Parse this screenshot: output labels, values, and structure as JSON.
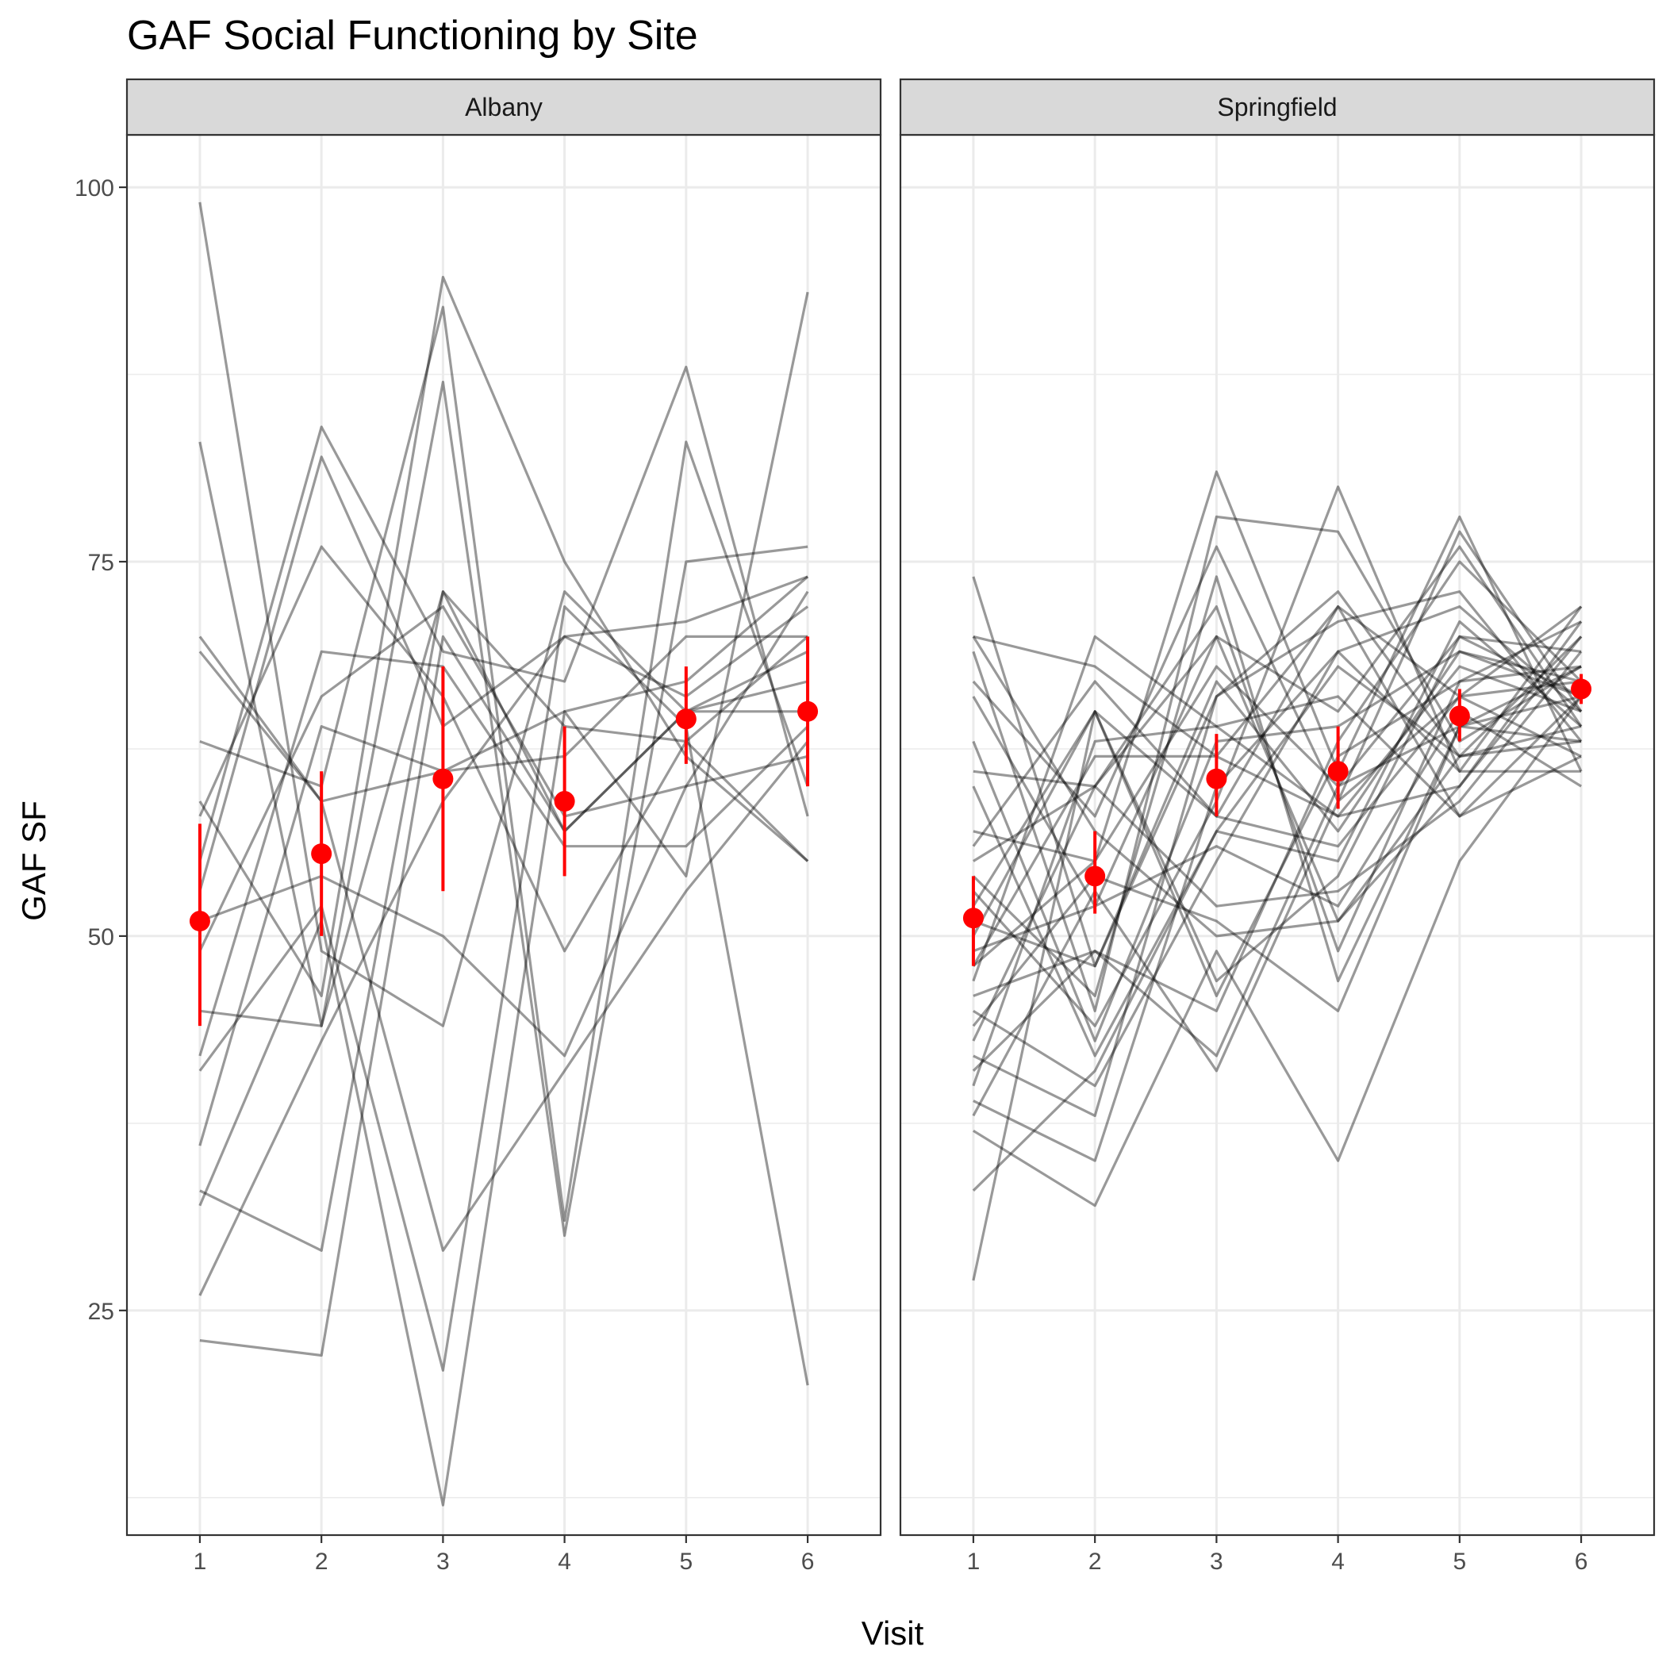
{
  "chart_data": {
    "type": "line",
    "title": "GAF Social Functioning by Site",
    "xlabel": "Visit",
    "ylabel": "GAF SF",
    "x": [
      1,
      2,
      3,
      4,
      5,
      6
    ],
    "x_ticks": [
      "1",
      "2",
      "3",
      "4",
      "5",
      "6"
    ],
    "y_ticks": [
      "25",
      "50",
      "75",
      "100"
    ],
    "y_tick_values": [
      25,
      50,
      75,
      100
    ],
    "ylim": [
      10,
      103.5
    ],
    "xlim": [
      0.4,
      6.6
    ],
    "grid": true,
    "colors": {
      "lines": "#000000",
      "summary": "#ff0000",
      "strip": "#d9d9d9",
      "grid": "#ebebeb",
      "border": "#333333"
    },
    "panels": [
      {
        "name": "Albany",
        "mean": [
          51,
          55.5,
          60.5,
          59,
          64.5,
          65
        ],
        "ci_low": [
          44,
          50,
          53,
          54,
          61.5,
          60
        ],
        "ci_high": [
          57.5,
          61,
          68,
          64,
          68,
          70
        ],
        "series": [
          [
            99,
            49,
            44,
            73,
            65,
            69
          ],
          [
            83,
            44,
            73,
            64,
            63,
            55
          ],
          [
            70,
            59,
            61,
            65,
            67,
            74
          ],
          [
            69,
            59,
            29,
            41,
            53,
            63
          ],
          [
            63,
            60,
            92,
            31,
            83,
            60
          ],
          [
            59,
            46,
            94,
            75,
            62,
            55
          ],
          [
            58,
            76,
            66,
            49,
            63,
            70
          ],
          [
            55,
            84,
            69,
            67,
            88,
            58
          ],
          [
            53,
            82,
            64,
            70,
            71,
            74
          ],
          [
            51,
            54,
            50,
            42,
            60,
            73
          ],
          [
            49,
            66,
            72,
            58,
            60,
            62
          ],
          [
            45,
            44,
            87,
            30,
            75,
            76
          ],
          [
            42,
            69,
            68,
            56,
            56,
            64
          ],
          [
            41,
            52,
            21,
            72,
            64,
            20
          ],
          [
            36,
            64,
            61,
            62,
            70,
            70
          ],
          [
            33,
            29,
            73,
            57,
            65,
            67
          ],
          [
            32,
            51,
            12,
            65,
            54,
            93
          ],
          [
            26,
            43,
            59,
            70,
            66,
            72
          ],
          [
            23,
            22,
            70,
            57,
            65,
            65
          ]
        ]
      },
      {
        "name": "Springfield",
        "mean": [
          51.2,
          54,
          60.5,
          61,
          64.7,
          66.5
        ],
        "ci_low": [
          48,
          51.5,
          58,
          58.5,
          63,
          65.5
        ],
        "ci_high": [
          54,
          57,
          63.5,
          64,
          66.5,
          67.5
        ],
        "series": [
          [
            74,
            48,
            67,
            57,
            69,
            66
          ],
          [
            70,
            57,
            50,
            51,
            60,
            71
          ],
          [
            70,
            68,
            62,
            72,
            66,
            62
          ],
          [
            69,
            45,
            78,
            77,
            63,
            68
          ],
          [
            67,
            58,
            76,
            59,
            66,
            72
          ],
          [
            66,
            52,
            70,
            65,
            76,
            64
          ],
          [
            63,
            43,
            63,
            64,
            69,
            67
          ],
          [
            61,
            60,
            52,
            53,
            59,
            69
          ],
          [
            60,
            42,
            57,
            55,
            71,
            64
          ],
          [
            57,
            55,
            81,
            61,
            78,
            61
          ],
          [
            56,
            67,
            58,
            72,
            58,
            66
          ],
          [
            55,
            60,
            70,
            51,
            62,
            70
          ],
          [
            54,
            46,
            74,
            47,
            64,
            63
          ],
          [
            53,
            44,
            59,
            80,
            61,
            72
          ],
          [
            52,
            65,
            58,
            56,
            66,
            67
          ],
          [
            51,
            48,
            66,
            71,
            73,
            63
          ],
          [
            50,
            65,
            46,
            62,
            67,
            68
          ],
          [
            49,
            52,
            56,
            52,
            65,
            60
          ],
          [
            48,
            62,
            62,
            58,
            68,
            65
          ],
          [
            48,
            55,
            68,
            60,
            70,
            66
          ],
          [
            47,
            70,
            64,
            66,
            58,
            62
          ],
          [
            46,
            49,
            42,
            60,
            64,
            68
          ],
          [
            45,
            40,
            55,
            69,
            72,
            65
          ],
          [
            44,
            54,
            51,
            45,
            64,
            66
          ],
          [
            43,
            60,
            72,
            49,
            67,
            71
          ],
          [
            42,
            38,
            66,
            73,
            62,
            63
          ],
          [
            41,
            49,
            45,
            63,
            75,
            67
          ],
          [
            40,
            63,
            64,
            58,
            60,
            70
          ],
          [
            39,
            35,
            60,
            69,
            61,
            61
          ],
          [
            38,
            53,
            41,
            59,
            77,
            65
          ],
          [
            37,
            32,
            49,
            35,
            55,
            66
          ],
          [
            33,
            41,
            57,
            68,
            62,
            64
          ],
          [
            27,
            65,
            47,
            54,
            70,
            69
          ]
        ]
      }
    ]
  }
}
